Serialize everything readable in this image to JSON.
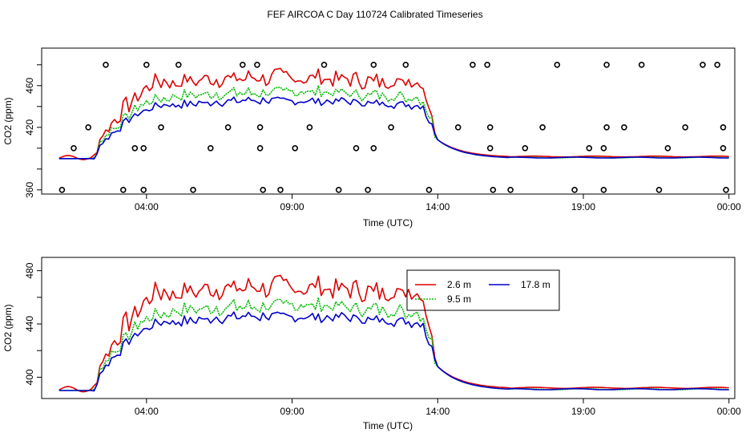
{
  "title": "FEF AIRCOA C  Day 110724  Calibrated Timeseries",
  "chart_data": [
    {
      "type": "line",
      "panel": "top",
      "xlabel": "Time (UTC)",
      "ylabel": "CO2 (ppm)",
      "xlim": [
        0.4,
        24.2
      ],
      "ylim": [
        356,
        496
      ],
      "xticks": [
        4,
        9,
        14,
        19,
        24
      ],
      "xtick_labels": [
        "04:00",
        "09:00",
        "14:00",
        "19:00",
        "00:00"
      ],
      "yticks": [
        360,
        380,
        400,
        420,
        440,
        460,
        480
      ],
      "ytick_labels": [
        "360",
        "",
        "",
        "420",
        "",
        "460",
        ""
      ],
      "colors": {
        "2.6 m": "#dd0000",
        "9.5 m": "#00bb00",
        "17.8 m": "#0000cc"
      },
      "marker_series_note": "open circles",
      "markers": [
        [
          1.1,
          360
        ],
        [
          1.5,
          400
        ],
        [
          2.0,
          420
        ],
        [
          2.6,
          480
        ],
        [
          3.2,
          360
        ],
        [
          3.6,
          400
        ],
        [
          3.9,
          360
        ],
        [
          3.9,
          400
        ],
        [
          4.0,
          480
        ],
        [
          4.5,
          420
        ],
        [
          5.1,
          480
        ],
        [
          5.6,
          360
        ],
        [
          6.2,
          400
        ],
        [
          6.8,
          420
        ],
        [
          7.3,
          480
        ],
        [
          7.8,
          480
        ],
        [
          7.9,
          420
        ],
        [
          7.9,
          400
        ],
        [
          8.0,
          360
        ],
        [
          8.6,
          360
        ],
        [
          9.1,
          400
        ],
        [
          9.6,
          420
        ],
        [
          10.1,
          480
        ],
        [
          10.6,
          360
        ],
        [
          11.2,
          400
        ],
        [
          11.6,
          360
        ],
        [
          11.8,
          400
        ],
        [
          11.8,
          480
        ],
        [
          12.4,
          420
        ],
        [
          12.9,
          480
        ],
        [
          13.7,
          360
        ],
        [
          14.7,
          420
        ],
        [
          15.2,
          480
        ],
        [
          15.7,
          480
        ],
        [
          15.8,
          420
        ],
        [
          15.8,
          400
        ],
        [
          15.9,
          360
        ],
        [
          16.5,
          360
        ],
        [
          17.0,
          400
        ],
        [
          17.6,
          420
        ],
        [
          18.1,
          480
        ],
        [
          18.7,
          360
        ],
        [
          19.2,
          400
        ],
        [
          19.7,
          360
        ],
        [
          19.7,
          400
        ],
        [
          19.8,
          420
        ],
        [
          19.8,
          480
        ],
        [
          20.4,
          420
        ],
        [
          21.0,
          480
        ],
        [
          21.6,
          360
        ],
        [
          21.9,
          400
        ],
        [
          22.5,
          420
        ],
        [
          23.1,
          480
        ],
        [
          23.6,
          480
        ],
        [
          23.8,
          420
        ],
        [
          23.8,
          400
        ],
        [
          23.9,
          360
        ]
      ]
    },
    {
      "type": "line",
      "panel": "bottom",
      "xlabel": "Time (UTC)",
      "ylabel": "CO2 (ppm)",
      "xlim": [
        0.4,
        24.2
      ],
      "ylim": [
        384,
        490
      ],
      "xticks": [
        4,
        9,
        14,
        19,
        24
      ],
      "xtick_labels": [
        "04:00",
        "09:00",
        "14:00",
        "19:00",
        "00:00"
      ],
      "yticks": [
        400,
        420,
        440,
        460,
        480
      ],
      "ytick_labels": [
        "400",
        "",
        "440",
        "",
        "480"
      ],
      "legend": [
        "2.6 m",
        "9.5 m",
        "17.8 m"
      ],
      "legend_position": "top-right-center",
      "colors": {
        "2.6 m": "#dd0000",
        "9.5 m": "#00bb00",
        "17.8 m": "#0000cc"
      }
    }
  ],
  "series_profiles": {
    "x_start": 1.0,
    "x_end": 24.0,
    "step": 0.1,
    "baseline": 390,
    "rise_start": 2.2,
    "rise_end": 4.2,
    "day_end": 13.5,
    "decay_end": 16.5,
    "levels": {
      "2.6 m": {
        "day_mean": 462,
        "noise": 10,
        "after": 392
      },
      "9.5 m": {
        "day_mean": 448,
        "noise": 7,
        "after": 391
      },
      "17.8 m": {
        "day_mean": 440,
        "noise": 5,
        "after": 391
      }
    }
  }
}
